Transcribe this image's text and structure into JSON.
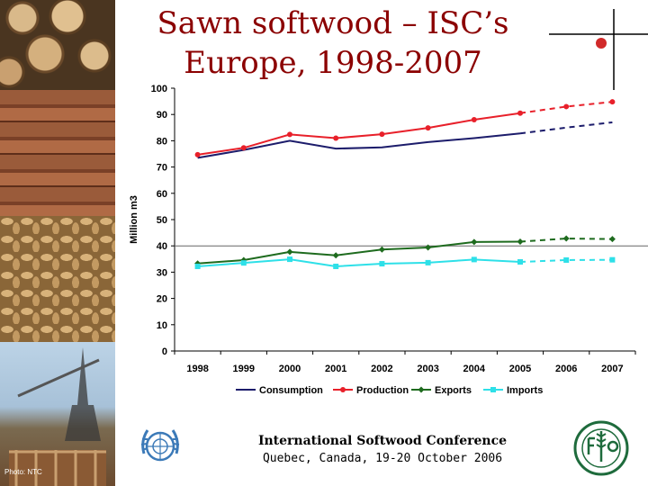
{
  "title": "Sawn softwood – ISC’s Europe, 1998-2007",
  "footer": {
    "conference": "International Softwood Conference",
    "location": "Quebec, Canada, 19-20 October 2006",
    "photo_credit": "Photo: NTC"
  },
  "colors": {
    "title": "#8b0000",
    "consumption": "#1c1c6b",
    "production": "#e8202a",
    "exports": "#1e6b1e",
    "imports": "#2ee0e8",
    "un_blue": "#3c7ab8",
    "fao_green": "#1e6b3c"
  },
  "icons": [
    "un-emblem-icon",
    "fao-emblem-icon"
  ],
  "chart_data": {
    "type": "line",
    "ylabel": "Million m3",
    "xlabel": "",
    "ylim": [
      0,
      100
    ],
    "yticks": [
      0,
      10,
      20,
      30,
      40,
      50,
      60,
      70,
      80,
      90,
      100
    ],
    "categories": [
      "1998",
      "1999",
      "2000",
      "2001",
      "2002",
      "2003",
      "2004",
      "2005",
      "2006",
      "2007"
    ],
    "solid_through": "2005",
    "dashed_from": "2005",
    "reference_line": 40,
    "legend_position": "bottom",
    "series": [
      {
        "name": "Consumption",
        "color": "#1c1c6b",
        "marker": "none",
        "values": [
          73.5,
          76.5,
          80.0,
          77.0,
          77.5,
          79.5,
          81.0,
          82.8,
          85.0,
          87.0
        ]
      },
      {
        "name": "Production",
        "color": "#e8202a",
        "marker": "circle",
        "values": [
          74.7,
          77.3,
          82.4,
          81.0,
          82.5,
          84.9,
          88.0,
          90.5,
          93.0,
          94.8
        ]
      },
      {
        "name": "Exports",
        "color": "#1e6b1e",
        "marker": "diamond",
        "values": [
          33.3,
          34.6,
          37.7,
          36.4,
          38.6,
          39.4,
          41.5,
          41.6,
          42.8,
          42.6
        ]
      },
      {
        "name": "Imports",
        "color": "#2ee0e8",
        "marker": "square",
        "values": [
          32.2,
          33.5,
          34.9,
          32.2,
          33.2,
          33.6,
          34.8,
          33.9,
          34.6,
          34.7
        ]
      }
    ]
  }
}
